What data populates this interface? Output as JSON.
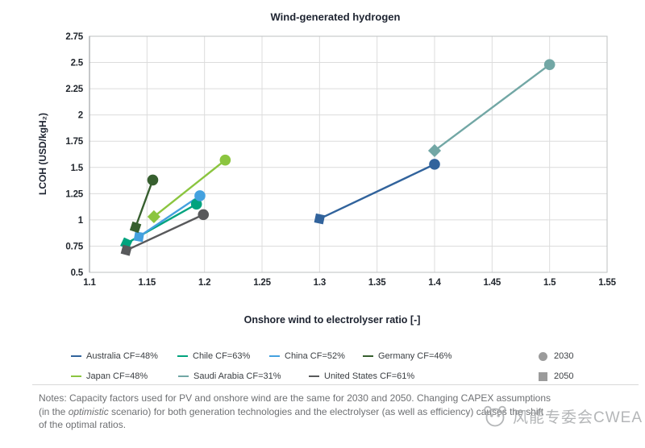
{
  "title": "Wind-generated hydrogen",
  "chart_data": {
    "type": "scatter",
    "title": "Wind-generated hydrogen",
    "xlabel": "Onshore wind to electrolyser ratio [-]",
    "ylabel": "LCOH (USD/kgH₂)",
    "xlim": [
      1.1,
      1.55
    ],
    "ylim": [
      0.5,
      2.75
    ],
    "x_ticks": [
      "1.1",
      "1.15",
      "1.2",
      "1.25",
      "1.3",
      "1.35",
      "1.4",
      "1.45",
      "1.5",
      "1.55"
    ],
    "y_ticks": [
      "2.75",
      "2.5",
      "2.25",
      "2",
      "1.75",
      "1.5",
      "1.25",
      "1",
      "0.75",
      "0.5"
    ],
    "grid": true,
    "legend_position": "bottom",
    "marker_key": [
      {
        "label": "2030",
        "shape": "circle",
        "color": "#9b9b9b"
      },
      {
        "label": "2050",
        "shape": "square",
        "color": "#9b9b9b"
      }
    ],
    "series": [
      {
        "name": "Australia CF=48%",
        "color": "#31639c",
        "points": [
          {
            "year": "2050",
            "x": 1.3,
            "y": 1.01,
            "marker": "square"
          },
          {
            "year": "2030",
            "x": 1.4,
            "y": 1.53,
            "marker": "circle"
          }
        ]
      },
      {
        "name": "Chile CF=63%",
        "color": "#00a37e",
        "points": [
          {
            "year": "2050",
            "x": 1.132,
            "y": 0.775,
            "marker": "square"
          },
          {
            "year": "2030",
            "x": 1.193,
            "y": 1.15,
            "marker": "circle"
          }
        ]
      },
      {
        "name": "China CF=52%",
        "color": "#44a1df",
        "points": [
          {
            "year": "2050",
            "x": 1.143,
            "y": 0.84,
            "marker": "square"
          },
          {
            "year": "2030",
            "x": 1.196,
            "y": 1.23,
            "marker": "circle"
          }
        ]
      },
      {
        "name": "Germany CF=46%",
        "color": "#375f2f",
        "points": [
          {
            "year": "2050",
            "x": 1.14,
            "y": 0.93,
            "marker": "square"
          },
          {
            "year": "2030",
            "x": 1.155,
            "y": 1.38,
            "marker": "circle"
          }
        ]
      },
      {
        "name": "Japan CF=48%",
        "color": "#8bc53f",
        "points": [
          {
            "year": "2050",
            "x": 1.156,
            "y": 1.03,
            "marker": "square"
          },
          {
            "year": "2030",
            "x": 1.218,
            "y": 1.57,
            "marker": "circle"
          }
        ]
      },
      {
        "name": "Saudi Arabia CF=31%",
        "color": "#72a7a5",
        "points": [
          {
            "year": "2050",
            "x": 1.4,
            "y": 1.66,
            "marker": "square"
          },
          {
            "year": "2030",
            "x": 1.5,
            "y": 2.48,
            "marker": "circle"
          }
        ]
      },
      {
        "name": "United States CF=61%",
        "color": "#58595b",
        "points": [
          {
            "year": "2050",
            "x": 1.132,
            "y": 0.71,
            "marker": "square"
          },
          {
            "year": "2030",
            "x": 1.199,
            "y": 1.05,
            "marker": "circle"
          }
        ]
      }
    ]
  },
  "notes": {
    "line1": "Notes: Capacity factors used for PV and onshore wind are the same for 2030 and 2050. Changing CAPEX assumptions",
    "line2_pre": "(in the ",
    "line2_italic": "optimistic",
    "line2_post": " scenario) for both generation technologies and the electrolyser (as well as efficiency) causes the shift",
    "line3": "of the optimal ratios."
  },
  "watermark": {
    "text": "风能专委会CWEA"
  }
}
